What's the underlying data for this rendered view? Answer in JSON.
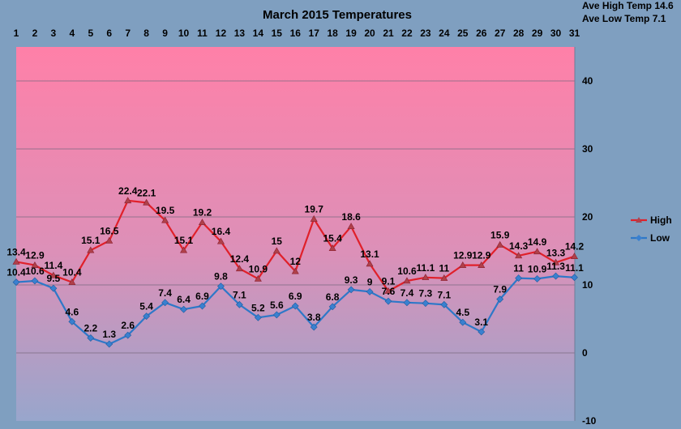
{
  "chart_data": {
    "type": "line",
    "title": "March 2015 Temperatures",
    "stats": [
      {
        "label": "Ave High Temp",
        "value": "14.6"
      },
      {
        "label": "Ave Low Temp",
        "value": "7.1"
      }
    ],
    "x": [
      1,
      2,
      3,
      4,
      5,
      6,
      7,
      8,
      9,
      10,
      11,
      12,
      13,
      14,
      15,
      16,
      17,
      18,
      19,
      20,
      21,
      22,
      23,
      24,
      25,
      26,
      27,
      28,
      29,
      30,
      31
    ],
    "ylim": [
      -10,
      45
    ],
    "yticks": [
      -10,
      0,
      10,
      20,
      30,
      40
    ],
    "grid": true,
    "legend_position": "right",
    "series": [
      {
        "name": "High",
        "color": "#e0202a",
        "marker": "triangle",
        "values": [
          13.4,
          12.9,
          11.4,
          10.4,
          15.1,
          16.5,
          22.4,
          22.1,
          19.5,
          15.1,
          19.2,
          16.4,
          12.4,
          10.9,
          15,
          12,
          19.7,
          15.4,
          18.6,
          13.1,
          9.1,
          10.6,
          11.1,
          11,
          12.9,
          12.9,
          15.9,
          14.3,
          14.9,
          13.3,
          14.2
        ]
      },
      {
        "name": "Low",
        "color": "#2e78c8",
        "marker": "diamond",
        "values": [
          10.4,
          10.6,
          9.5,
          4.6,
          2.2,
          1.3,
          2.6,
          5.4,
          7.4,
          6.4,
          6.9,
          9.8,
          7.1,
          5.2,
          5.6,
          6.9,
          3.8,
          6.8,
          9.3,
          9,
          7.6,
          7.4,
          7.3,
          7.1,
          4.5,
          3.1,
          7.9,
          11,
          10.9,
          11.3,
          11.1
        ]
      }
    ]
  }
}
